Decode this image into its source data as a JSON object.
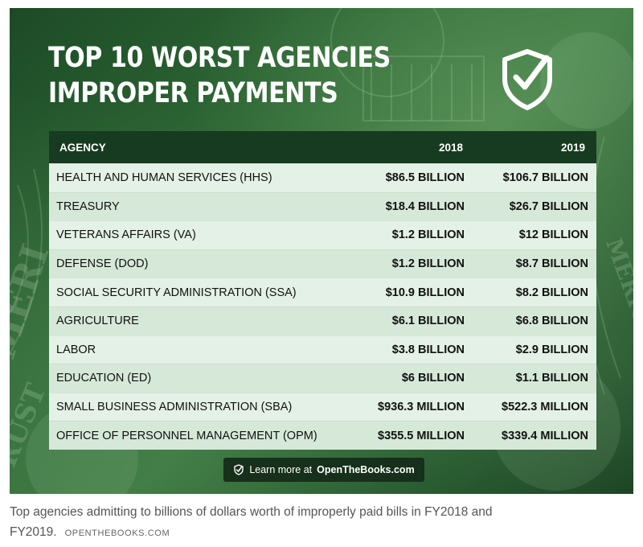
{
  "infographic": {
    "title_lines": [
      "TOP 10 WORST AGENCIES",
      "IMPROPER PAYMENTS"
    ],
    "badge_icon": "shield-checkmark-icon",
    "cta": {
      "icon": "shield-checkmark-icon",
      "prefix": "Learn more at",
      "brand": "OpenTheBooks.com"
    },
    "colors": {
      "background": "#2f6a36",
      "header_row": "#173b20",
      "row_light": "#e4f1e6",
      "row_dark": "#d6e9d9",
      "cta_bg": "#16301b"
    }
  },
  "chart_data": {
    "type": "table",
    "title": "TOP 10 WORST AGENCIES IMPROPER PAYMENTS",
    "columns": [
      "AGENCY",
      "2018",
      "2019"
    ],
    "rows": [
      [
        "HEALTH AND HUMAN SERVICES (HHS)",
        "$86.5 BILLION",
        "$106.7 BILLION"
      ],
      [
        "TREASURY",
        "$18.4 BILLION",
        "$26.7 BILLION"
      ],
      [
        "VETERANS AFFAIRS (VA)",
        "$1.2 BILLION",
        "$12 BILLION"
      ],
      [
        "DEFENSE (DOD)",
        "$1.2 BILLION",
        "$8.7 BILLION"
      ],
      [
        "SOCIAL SECURITY ADMINISTRATION (SSA)",
        "$10.9 BILLION",
        "$8.2 BILLION"
      ],
      [
        "AGRICULTURE",
        "$6.1 BILLION",
        "$6.8 BILLION"
      ],
      [
        "LABOR",
        "$3.8 BILLION",
        "$2.9 BILLION"
      ],
      [
        "EDUCATION (ED)",
        "$6 BILLION",
        "$1.1 BILLION"
      ],
      [
        "SMALL BUSINESS ADMINISTRATION (SBA)",
        "$936.3 MILLION",
        "$522.3 MILLION"
      ],
      [
        "OFFICE OF PERSONNEL MANAGEMENT (OPM)",
        "$355.5 MILLION",
        "$339.4 MILLION"
      ]
    ]
  },
  "caption": {
    "text": "Top agencies admitting to billions of dollars worth of improperly paid bills in FY2018 and FY2019.",
    "source": "OPENTHEBOOKS.COM"
  }
}
